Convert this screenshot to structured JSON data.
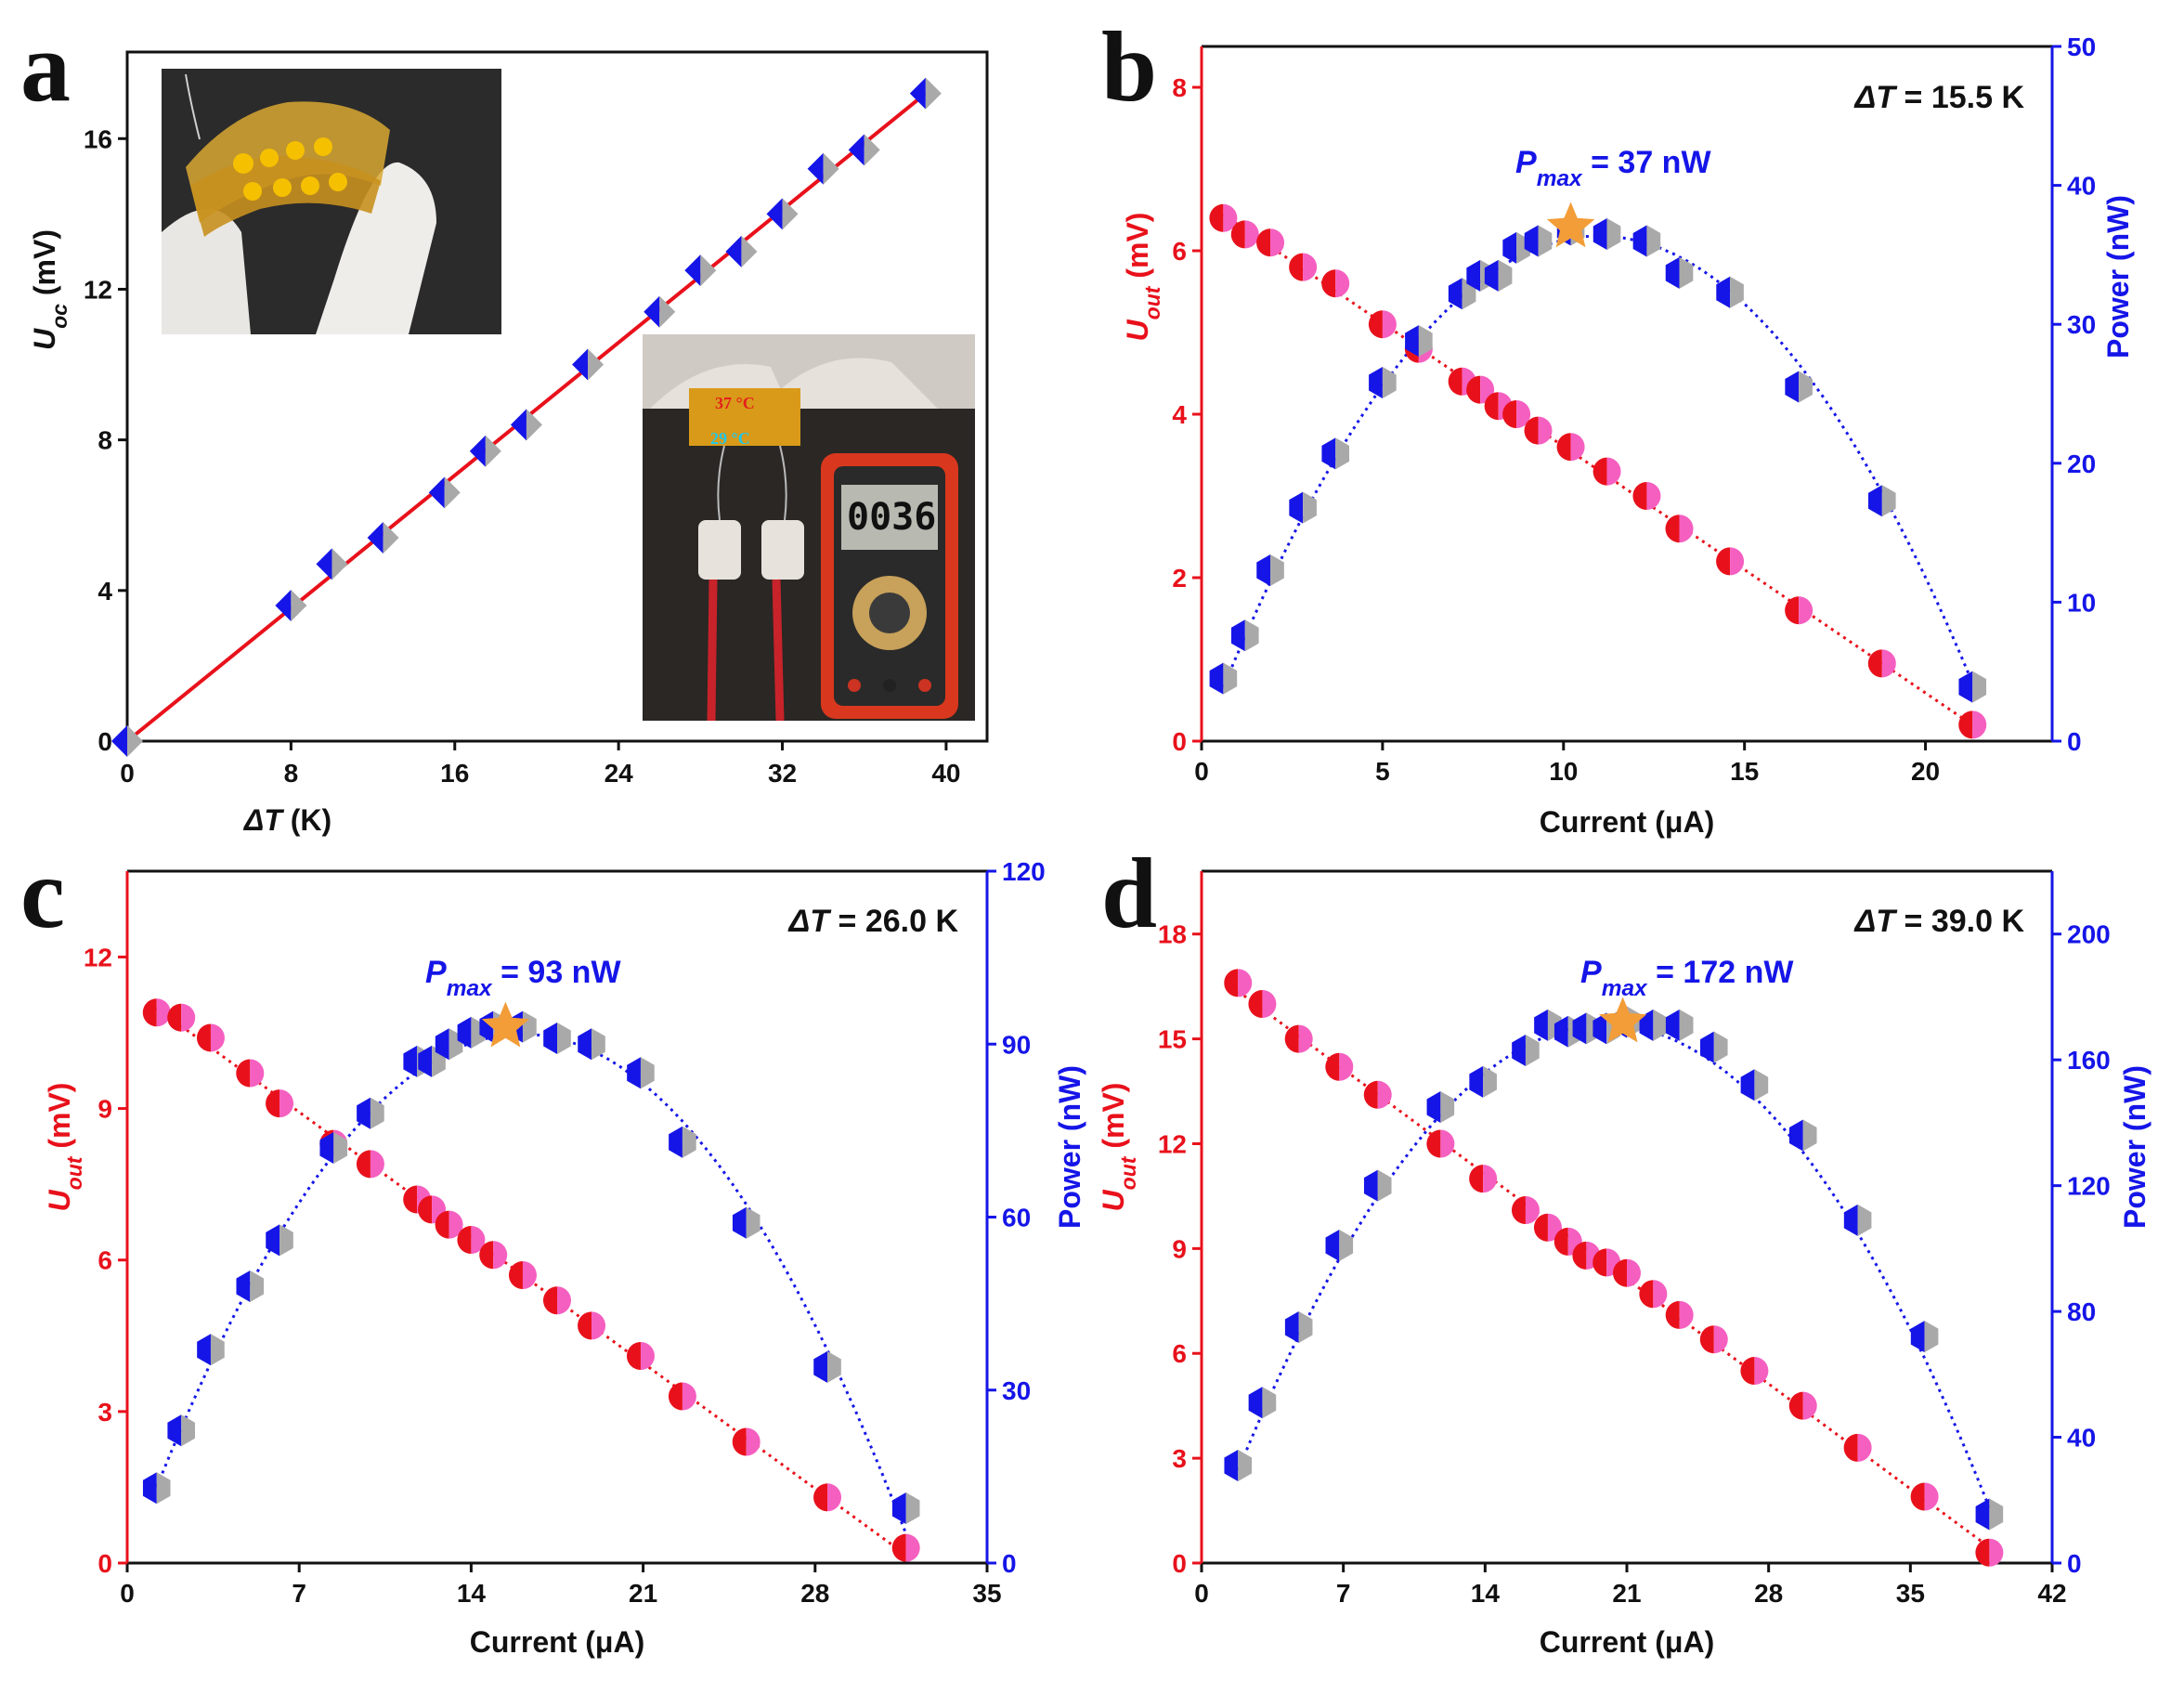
{
  "figure": {
    "colors": {
      "red": "#e8111b",
      "blue": "#1515e8",
      "pink": "#f55fc0",
      "gray": "#a9a9a9",
      "orange": "#f29d38",
      "axis": "#111111"
    }
  },
  "chart_data": [
    {
      "panel": "a",
      "type": "scatter",
      "xlabel_var": "ΔT",
      "xlabel_unit": " (K)",
      "ylabel_var": "U",
      "ylabel_sub": "oc",
      "ylabel_unit": " (mV)",
      "xlim": [
        0,
        42
      ],
      "ylim": [
        0,
        18.3
      ],
      "xticks": [
        0,
        8,
        16,
        24,
        32,
        40
      ],
      "yticks": [
        0,
        4,
        8,
        12,
        16
      ],
      "series": [
        {
          "name": "Uoc",
          "x": [
            0,
            8,
            10,
            12.5,
            15.5,
            17.5,
            19.5,
            22.5,
            26,
            28,
            30,
            32,
            34,
            36,
            39
          ],
          "y": [
            0,
            3.6,
            4.7,
            5.4,
            6.6,
            7.7,
            8.4,
            10.0,
            11.4,
            12.5,
            13.0,
            14.0,
            15.2,
            15.7,
            17.2
          ]
        },
        {
          "name": "Linear fit",
          "x": [
            0,
            39
          ],
          "y": [
            0,
            17.2
          ]
        }
      ],
      "insets": {
        "hot_label": "37 °C",
        "cold_label": "29 °C",
        "meter_reading": "0036"
      }
    },
    {
      "panel": "b",
      "type": "scatter",
      "annotation": "ΔT = 15.5 K",
      "pmax_label": "P",
      "pmax_sub": "max",
      "pmax_value": " = 37 nW",
      "xlabel": "Current (μA)",
      "ylabel_var": "U",
      "ylabel_sub": "out",
      "ylabel_unit": " (mV)",
      "y2label": "Power (nW)",
      "xlim": [
        0,
        23.5
      ],
      "ylim": [
        0,
        8.5
      ],
      "y2lim": [
        0,
        50
      ],
      "xticks": [
        0,
        5,
        10,
        15,
        20
      ],
      "yticks": [
        0,
        2,
        4,
        6,
        8
      ],
      "y2ticks": [
        0,
        10,
        20,
        30,
        40,
        50
      ],
      "voltage": {
        "x": [
          0.6,
          1.2,
          1.9,
          2.8,
          3.7,
          5.0,
          6.0,
          7.2,
          7.7,
          8.2,
          8.7,
          9.3,
          10.2,
          11.2,
          12.3,
          13.2,
          14.6,
          16.5,
          18.8,
          21.3
        ],
        "y": [
          6.4,
          6.2,
          6.1,
          5.8,
          5.6,
          5.1,
          4.8,
          4.4,
          4.3,
          4.1,
          4.0,
          3.8,
          3.6,
          3.3,
          3.0,
          2.6,
          2.2,
          1.6,
          0.95,
          0.2
        ]
      },
      "power": {
        "x": [
          0.6,
          1.2,
          1.9,
          2.8,
          3.7,
          5.0,
          6.0,
          7.2,
          7.7,
          8.2,
          8.7,
          9.3,
          10.2,
          11.2,
          12.3,
          13.2,
          14.6,
          16.5,
          18.8,
          21.3
        ],
        "y": [
          4.5,
          7.6,
          12.3,
          16.8,
          20.7,
          25.8,
          28.8,
          32.2,
          33.5,
          33.5,
          35.5,
          36.0,
          36.8,
          36.5,
          36.0,
          33.7,
          32.3,
          25.5,
          17.3,
          3.9
        ]
      },
      "star": {
        "x": 10.2,
        "y": 37
      }
    },
    {
      "panel": "c",
      "type": "scatter",
      "annotation": "ΔT = 26.0 K",
      "pmax_label": "P",
      "pmax_sub": "max",
      "pmax_value": " = 93 nW",
      "xlabel": "Current (μA)",
      "ylabel_var": "U",
      "ylabel_sub": "out",
      "ylabel_unit": " (mV)",
      "y2label": "Power (nW)",
      "xlim": [
        0,
        35
      ],
      "ylim": [
        0,
        13.7
      ],
      "y2lim": [
        0,
        120
      ],
      "xticks": [
        0,
        7,
        14,
        21,
        28,
        35
      ],
      "yticks": [
        0,
        3,
        6,
        9,
        12
      ],
      "y2ticks": [
        0,
        30,
        60,
        90,
        120
      ],
      "voltage": {
        "x": [
          1.2,
          2.2,
          3.4,
          5.0,
          6.2,
          8.4,
          9.9,
          11.8,
          12.4,
          13.1,
          14.0,
          14.9,
          16.1,
          17.5,
          18.9,
          20.9,
          22.6,
          25.2,
          28.5,
          31.7
        ],
        "y": [
          10.9,
          10.8,
          10.4,
          9.7,
          9.1,
          8.3,
          7.9,
          7.2,
          7.0,
          6.7,
          6.4,
          6.1,
          5.7,
          5.2,
          4.7,
          4.1,
          3.3,
          2.4,
          1.3,
          0.3
        ]
      },
      "power": {
        "x": [
          1.2,
          2.2,
          3.4,
          5.0,
          6.2,
          8.4,
          9.9,
          11.8,
          12.4,
          13.1,
          14.0,
          14.9,
          16.1,
          17.5,
          18.9,
          20.9,
          22.6,
          25.2,
          28.5,
          31.7
        ],
        "y": [
          13,
          23,
          37,
          48,
          56,
          72,
          78,
          87,
          87,
          90,
          92,
          93,
          93,
          91,
          90,
          85,
          73,
          59,
          34,
          9.5
        ]
      },
      "star": {
        "x": 15.4,
        "y": 93
      }
    },
    {
      "panel": "d",
      "type": "scatter",
      "annotation": "ΔT = 39.0 K",
      "pmax_label": "P",
      "pmax_sub": "max",
      "pmax_value": " = 172 nW",
      "xlabel": "Current (μA)",
      "ylabel_var": "U",
      "ylabel_sub": "out",
      "ylabel_unit": " (mV)",
      "y2label": "Power (nW)",
      "xlim": [
        0,
        42
      ],
      "ylim": [
        0,
        19.8
      ],
      "y2lim": [
        0,
        220
      ],
      "xticks": [
        0,
        7,
        14,
        21,
        28,
        35,
        42
      ],
      "yticks": [
        0,
        3,
        6,
        9,
        12,
        15,
        18
      ],
      "y2ticks": [
        0,
        40,
        80,
        120,
        160,
        200
      ],
      "voltage": {
        "x": [
          1.8,
          3.0,
          4.8,
          6.8,
          8.7,
          11.8,
          13.9,
          16.0,
          17.1,
          18.1,
          19.0,
          20.0,
          21.0,
          22.3,
          23.6,
          25.3,
          27.3,
          29.7,
          32.4,
          35.7,
          38.9
        ],
        "y": [
          16.6,
          16.0,
          15.0,
          14.2,
          13.4,
          12.0,
          11.0,
          10.1,
          9.6,
          9.2,
          8.8,
          8.6,
          8.3,
          7.7,
          7.1,
          6.4,
          5.5,
          4.5,
          3.3,
          1.9,
          0.3
        ]
      },
      "power": {
        "x": [
          1.8,
          3.0,
          4.8,
          6.8,
          8.7,
          11.8,
          13.9,
          16.0,
          17.1,
          18.1,
          19.0,
          20.0,
          21.0,
          22.3,
          23.6,
          25.3,
          27.3,
          29.7,
          32.4,
          35.7,
          38.9
        ],
        "y": [
          31,
          51,
          75,
          101,
          120,
          145,
          153,
          163,
          171,
          169,
          170,
          170,
          172,
          171,
          171,
          164,
          152,
          136,
          109,
          72,
          15.5
        ]
      },
      "star": {
        "x": 20.8,
        "y": 172
      }
    }
  ]
}
